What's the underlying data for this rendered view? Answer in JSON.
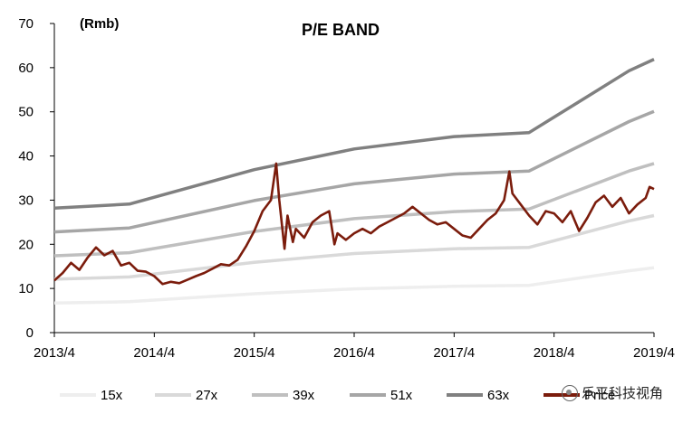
{
  "chart_data": {
    "type": "line",
    "title": "P/E BAND",
    "ylabel": "(Rmb)",
    "xlabel": "",
    "ylim": [
      0,
      70
    ],
    "yticks": [
      0,
      10,
      20,
      30,
      40,
      50,
      60,
      70
    ],
    "xlim": [
      "2013-04",
      "2019-04"
    ],
    "xticks": [
      "2013/4",
      "2014/4",
      "2015/4",
      "2016/4",
      "2017/4",
      "2018/4",
      "2019/4"
    ],
    "grid": false,
    "legend_position": "bottom",
    "bands": [
      {
        "name": "15x",
        "color": "#eeeeee",
        "points": [
          [
            "2013-04",
            6.7
          ],
          [
            "2014-01",
            7.0
          ],
          [
            "2015-04",
            8.8
          ],
          [
            "2016-04",
            9.9
          ],
          [
            "2017-04",
            10.5
          ],
          [
            "2018-01",
            10.7
          ],
          [
            "2019-01",
            14.0
          ],
          [
            "2019-04",
            14.7
          ]
        ]
      },
      {
        "name": "27x",
        "color": "#d9d9d9",
        "points": [
          [
            "2013-04",
            12.1
          ],
          [
            "2014-01",
            12.6
          ],
          [
            "2015-04",
            15.9
          ],
          [
            "2016-04",
            17.9
          ],
          [
            "2017-04",
            19.0
          ],
          [
            "2018-01",
            19.3
          ],
          [
            "2019-01",
            25.3
          ],
          [
            "2019-04",
            26.5
          ]
        ]
      },
      {
        "name": "39x",
        "color": "#bfbfbf",
        "points": [
          [
            "2013-04",
            17.4
          ],
          [
            "2014-01",
            18.1
          ],
          [
            "2015-04",
            22.9
          ],
          [
            "2016-04",
            25.8
          ],
          [
            "2017-04",
            27.4
          ],
          [
            "2018-01",
            28.0
          ],
          [
            "2019-01",
            36.6
          ],
          [
            "2019-04",
            38.3
          ]
        ]
      },
      {
        "name": "51x",
        "color": "#a6a6a6",
        "points": [
          [
            "2013-04",
            22.8
          ],
          [
            "2014-01",
            23.7
          ],
          [
            "2015-04",
            29.9
          ],
          [
            "2016-04",
            33.7
          ],
          [
            "2017-04",
            35.9
          ],
          [
            "2018-01",
            36.6
          ],
          [
            "2019-01",
            47.8
          ],
          [
            "2019-04",
            50.1
          ]
        ]
      },
      {
        "name": "63x",
        "color": "#808080",
        "points": [
          [
            "2013-04",
            28.2
          ],
          [
            "2014-01",
            29.1
          ],
          [
            "2015-04",
            36.9
          ],
          [
            "2016-04",
            41.6
          ],
          [
            "2017-04",
            44.4
          ],
          [
            "2018-01",
            45.3
          ],
          [
            "2019-01",
            59.3
          ],
          [
            "2019-04",
            61.9
          ]
        ]
      }
    ],
    "price": {
      "name": "Price",
      "color": "#7b1c0c",
      "points": [
        [
          "2013-04",
          11.8
        ],
        [
          "2013-05",
          13.5
        ],
        [
          "2013-06",
          15.8
        ],
        [
          "2013-07",
          14.2
        ],
        [
          "2013-08",
          17.0
        ],
        [
          "2013-09",
          19.3
        ],
        [
          "2013-10",
          17.5
        ],
        [
          "2013-11",
          18.5
        ],
        [
          "2013-12",
          15.2
        ],
        [
          "2014-01",
          15.8
        ],
        [
          "2014-02",
          14.0
        ],
        [
          "2014-03",
          13.8
        ],
        [
          "2014-04",
          12.8
        ],
        [
          "2014-05",
          11.0
        ],
        [
          "2014-06",
          11.5
        ],
        [
          "2014-07",
          11.2
        ],
        [
          "2014-08",
          12.0
        ],
        [
          "2014-09",
          12.8
        ],
        [
          "2014-10",
          13.5
        ],
        [
          "2014-11",
          14.5
        ],
        [
          "2014-12",
          15.5
        ],
        [
          "2015-01",
          15.2
        ],
        [
          "2015-02",
          16.5
        ],
        [
          "2015-03",
          19.5
        ],
        [
          "2015-04",
          23.0
        ],
        [
          "2015-05",
          27.5
        ],
        [
          "2015-06",
          30.0
        ],
        [
          "2015-06-20",
          38.3
        ],
        [
          "2015-07",
          30.0
        ],
        [
          "2015-07-20",
          19.0
        ],
        [
          "2015-08",
          26.5
        ],
        [
          "2015-08-20",
          20.5
        ],
        [
          "2015-09",
          23.5
        ],
        [
          "2015-10",
          21.5
        ],
        [
          "2015-11",
          25.0
        ],
        [
          "2015-12",
          26.5
        ],
        [
          "2016-01",
          27.5
        ],
        [
          "2016-01-20",
          20.0
        ],
        [
          "2016-02",
          22.5
        ],
        [
          "2016-03",
          21.0
        ],
        [
          "2016-04",
          22.5
        ],
        [
          "2016-05",
          23.5
        ],
        [
          "2016-06",
          22.5
        ],
        [
          "2016-07",
          24.0
        ],
        [
          "2016-08",
          25.0
        ],
        [
          "2016-09",
          26.0
        ],
        [
          "2016-10",
          27.0
        ],
        [
          "2016-11",
          28.5
        ],
        [
          "2016-12",
          27.0
        ],
        [
          "2017-01",
          25.5
        ],
        [
          "2017-02",
          24.5
        ],
        [
          "2017-03",
          25.0
        ],
        [
          "2017-04",
          23.5
        ],
        [
          "2017-05",
          22.0
        ],
        [
          "2017-06",
          21.5
        ],
        [
          "2017-07",
          23.5
        ],
        [
          "2017-08",
          25.5
        ],
        [
          "2017-09",
          27.0
        ],
        [
          "2017-10",
          30.0
        ],
        [
          "2017-10-20",
          36.5
        ],
        [
          "2017-11",
          31.5
        ],
        [
          "2017-12",
          29.0
        ],
        [
          "2018-01",
          26.5
        ],
        [
          "2018-02",
          24.5
        ],
        [
          "2018-03",
          27.5
        ],
        [
          "2018-04",
          27.0
        ],
        [
          "2018-05",
          25.0
        ],
        [
          "2018-06",
          27.5
        ],
        [
          "2018-07",
          23.0
        ],
        [
          "2018-08",
          26.0
        ],
        [
          "2018-09",
          29.5
        ],
        [
          "2018-10",
          31.0
        ],
        [
          "2018-11",
          28.5
        ],
        [
          "2018-12",
          30.5
        ],
        [
          "2019-01",
          27.0
        ],
        [
          "2019-02",
          29.0
        ],
        [
          "2019-03",
          30.5
        ],
        [
          "2019-03-15",
          33.0
        ],
        [
          "2019-04",
          32.5
        ]
      ]
    },
    "legend": [
      {
        "label": "15x",
        "color": "#eeeeee"
      },
      {
        "label": "27x",
        "color": "#d9d9d9"
      },
      {
        "label": "39x",
        "color": "#bfbfbf"
      },
      {
        "label": "51x",
        "color": "#a6a6a6"
      },
      {
        "label": "63x",
        "color": "#808080"
      },
      {
        "label": "Price",
        "color": "#7b1c0c"
      }
    ]
  },
  "watermark": {
    "text": "乐平科技视角",
    "logo_icon": "wechat-logo-icon"
  }
}
